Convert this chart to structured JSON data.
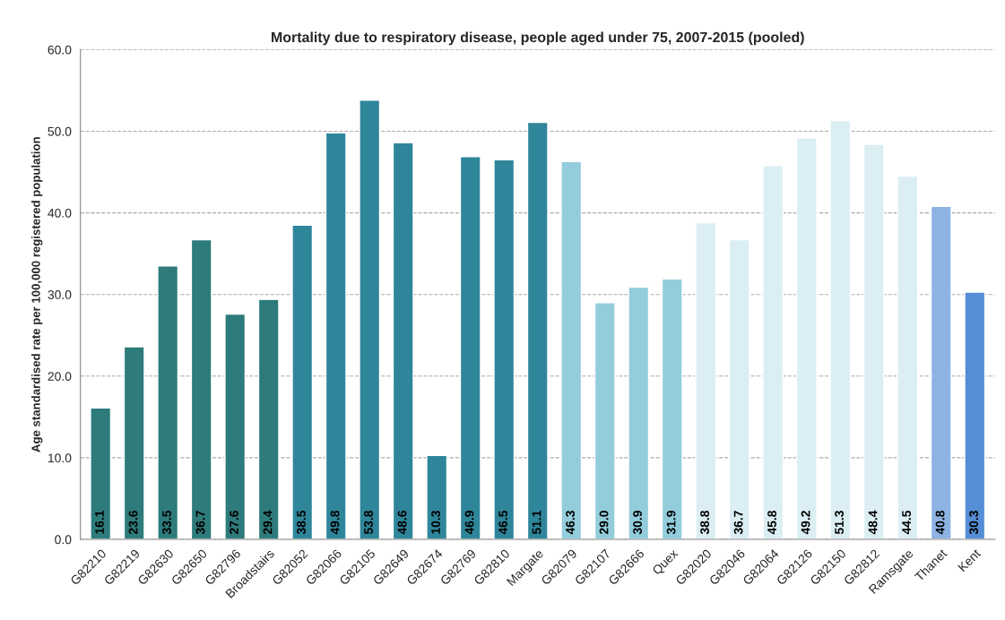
{
  "chart_data": {
    "type": "bar",
    "title": "Mortality due to respiratory disease, people aged under 75, 2007-2015 (pooled)",
    "ylabel": "Age standardised rate per 100,000 registered population",
    "categories": [
      "G82210",
      "G82219",
      "G82630",
      "G82650",
      "G82796",
      "Broadstairs",
      "G82052",
      "G82066",
      "G82105",
      "G82649",
      "G82674",
      "G82769",
      "G82810",
      "Margate",
      "G82079",
      "G82107",
      "G82666",
      "Quex",
      "G82020",
      "G82046",
      "G82064",
      "G82126",
      "G82150",
      "G82812",
      "Ramsgate",
      "Thanet",
      "Kent"
    ],
    "values": [
      16.1,
      23.6,
      33.5,
      36.7,
      27.6,
      29.4,
      38.5,
      49.8,
      53.8,
      48.6,
      10.3,
      46.9,
      46.5,
      51.1,
      46.3,
      29.0,
      30.9,
      31.9,
      38.8,
      36.7,
      45.8,
      49.2,
      51.3,
      48.4,
      44.5,
      40.8,
      30.3
    ],
    "value_labels": [
      "16.1",
      "23.6",
      "33.5",
      "36.7",
      "27.6",
      "29.4",
      "38.5",
      "49.8",
      "53.8",
      "48.6",
      "10.3",
      "46.9",
      "46.5",
      "51.1",
      "46.3",
      "29.0",
      "30.9",
      "31.9",
      "38.8",
      "36.7",
      "45.8",
      "49.2",
      "51.3",
      "48.4",
      "44.5",
      "40.8",
      "30.3"
    ],
    "colors": [
      "#2e7b7b",
      "#2e7b7b",
      "#2e7b7b",
      "#2e7b7b",
      "#2e7b7b",
      "#2e7b7b",
      "#2f869a",
      "#2f869a",
      "#2f869a",
      "#2f869a",
      "#2f869a",
      "#2f869a",
      "#2f869a",
      "#2f869a",
      "#93cddc",
      "#93cddc",
      "#93cddc",
      "#93cddc",
      "#dbeef3",
      "#dbeef3",
      "#dbeef3",
      "#dbeef3",
      "#dbeef3",
      "#dbeef3",
      "#dbeef3",
      "#8db3e2",
      "#558ed5"
    ],
    "ylim": [
      0,
      60
    ],
    "yticks": [
      {
        "value": 0,
        "label": "0.0"
      },
      {
        "value": 10,
        "label": "10.0"
      },
      {
        "value": 20,
        "label": "20.0"
      },
      {
        "value": 30,
        "label": "30.0"
      },
      {
        "value": 40,
        "label": "40.0"
      },
      {
        "value": 50,
        "label": "50.0"
      },
      {
        "value": 60,
        "label": "60.0"
      }
    ],
    "grid": "y",
    "legend": false
  }
}
